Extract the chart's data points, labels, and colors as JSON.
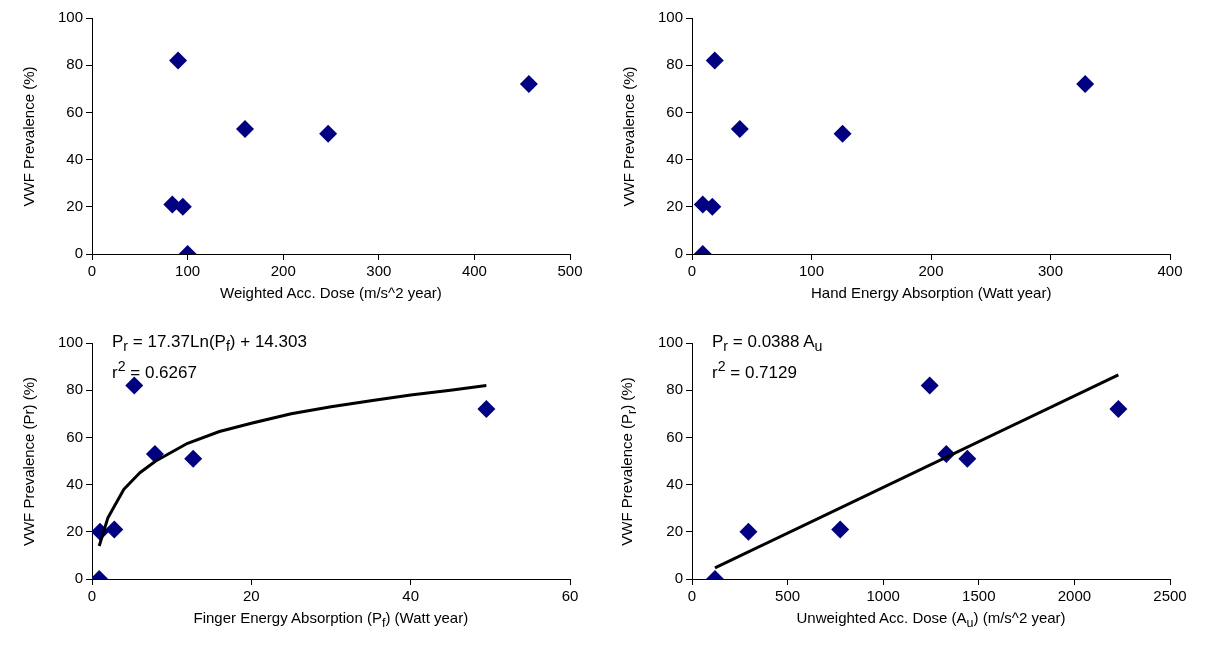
{
  "chart_data": [
    {
      "type": "scatter",
      "xlabel": "Weighted Acc. Dose  (m/s^2  year)",
      "ylabel": "VWF Prevalence  (%)",
      "xlim": [
        0,
        500
      ],
      "xticks": [
        0,
        100,
        200,
        300,
        400,
        500
      ],
      "ylim": [
        0,
        100
      ],
      "yticks": [
        0,
        20,
        40,
        60,
        80,
        100
      ],
      "grid": false,
      "legend": false,
      "marker": "diamond",
      "series": [
        {
          "color": "#000080",
          "x": [
            84,
            90,
            95,
            100,
            160,
            247,
            457
          ],
          "values": [
            21,
            82,
            20,
            0,
            53,
            51,
            72
          ]
        }
      ]
    },
    {
      "type": "scatter",
      "xlabel": "Hand Energy Absorption  (Watt year)",
      "ylabel": "VWF Prevalence  (%)",
      "xlim": [
        0,
        400
      ],
      "xticks": [
        0,
        100,
        200,
        300,
        400
      ],
      "ylim": [
        0,
        100
      ],
      "yticks": [
        0,
        20,
        40,
        60,
        80,
        100
      ],
      "grid": false,
      "legend": false,
      "marker": "diamond",
      "series": [
        {
          "color": "#000080",
          "x": [
            9,
            19,
            17,
            9,
            40,
            126,
            329
          ],
          "values": [
            21,
            82,
            20,
            0,
            53,
            51,
            72
          ]
        }
      ]
    },
    {
      "type": "scatter",
      "xlabel": "Finger Energy Absorption (P$_{f}$)  (Watt year)",
      "ylabel": "VWF Prevalence (Pr)  (%)",
      "xlim": [
        0,
        60
      ],
      "xticks": [
        0,
        20,
        40,
        60
      ],
      "ylim": [
        0,
        100
      ],
      "yticks": [
        0,
        20,
        40,
        60,
        80,
        100
      ],
      "grid": false,
      "legend": false,
      "marker": "diamond",
      "annotations": [
        "P$_{r}$ = 17.37Ln(P$_{f}$) + 14.303",
        "r$^{2}$ = 0.6267"
      ],
      "series": [
        {
          "color": "#000080",
          "x": [
            1,
            2.8,
            5.3,
            0.9,
            7.9,
            12.7,
            49.5
          ],
          "values": [
            20,
            21,
            82,
            0,
            53,
            51,
            72
          ]
        },
        {
          "type": "line",
          "color": "#000000",
          "marker": "none",
          "x": [
            0.9,
            2,
            4,
            6,
            8,
            12,
            16,
            20,
            25,
            30,
            35,
            40,
            45,
            49.5
          ],
          "values": [
            14,
            26,
            38,
            45,
            50,
            57.5,
            62.5,
            66,
            70,
            73,
            75.5,
            78,
            80,
            82
          ]
        }
      ]
    },
    {
      "type": "scatter",
      "xlabel": "Unweighted Acc. Dose (A$_{u}$)  (m/s^2  year)",
      "ylabel": "VWF Prevalence (P$_{r}$)  (%)",
      "xlim": [
        0,
        2500
      ],
      "xticks": [
        0,
        500,
        1000,
        1500,
        2000,
        2500
      ],
      "ylim": [
        0,
        100
      ],
      "yticks": [
        0,
        20,
        40,
        60,
        80,
        100
      ],
      "grid": false,
      "legend": false,
      "marker": "diamond",
      "annotations": [
        "P$_{r}$ = 0.0388 A$_{u}$",
        "r$^{2}$ = 0.7129"
      ],
      "series": [
        {
          "color": "#000080",
          "x": [
            120,
            295,
            775,
            1243,
            1330,
            1440,
            2230
          ],
          "values": [
            0,
            20,
            21,
            82,
            53,
            51,
            72
          ]
        },
        {
          "type": "line",
          "color": "#000000",
          "marker": "none",
          "x": [
            120,
            2230
          ],
          "values": [
            4.7,
            86.5
          ]
        }
      ]
    }
  ]
}
